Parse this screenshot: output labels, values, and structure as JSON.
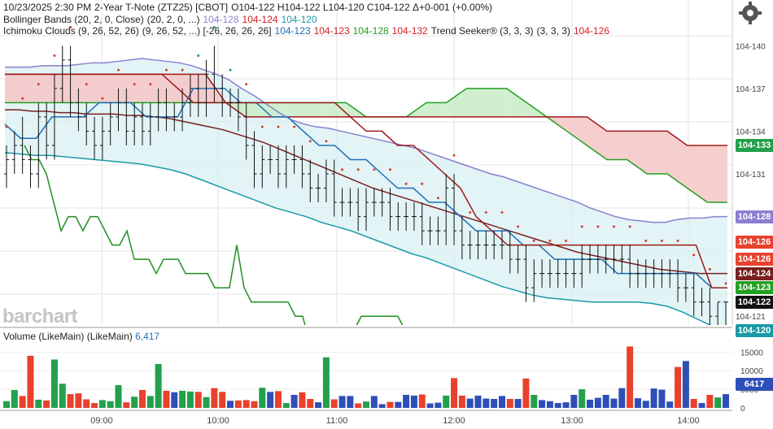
{
  "header": {
    "line1": [
      {
        "text": "10/23/2025  2:30 PM",
        "color": "dark"
      },
      {
        "text": "2-Year T-Note (ZTZ25) [CBOT]",
        "color": "dark"
      },
      {
        "text": "O104-122 H104-122 L104-120 C104-122 Δ+0-001 (+0.00%)",
        "color": "dark"
      }
    ],
    "line2": [
      {
        "text": "Bollinger Bands (20, 2, 0, Close)",
        "color": "dark"
      },
      {
        "text": "(20, 2, 0, ...)",
        "color": "dark"
      },
      {
        "text": "104-128",
        "color": "purple"
      },
      {
        "text": "104-124",
        "color": "red"
      },
      {
        "text": "104-120",
        "color": "teal"
      }
    ],
    "line3": [
      {
        "text": "Ichimoku Clouds (9, 26, 52, 26)",
        "color": "dark"
      },
      {
        "text": "(9, 26, 52, ...) [-26, 26, 26, 26]",
        "color": "dark"
      },
      {
        "text": "104-123",
        "color": "blue"
      },
      {
        "text": "104-123",
        "color": "red"
      },
      {
        "text": "104-128",
        "color": "green"
      },
      {
        "text": "104-132",
        "color": "red"
      },
      {
        "text": "Trend Seeker® (3, 3, 3)",
        "color": "dark"
      },
      {
        "text": "(3, 3, 3)",
        "color": "dark"
      },
      {
        "text": "104-126",
        "color": "red"
      }
    ]
  },
  "logo": "barchart",
  "settings_icon": "gear-icon",
  "volume_title": {
    "label": "Volume (LikeMain)",
    "sub": "(LikeMain)",
    "value": "6,417"
  },
  "colors": {
    "up": "#22a04a",
    "down": "#e8412c",
    "neutral": "#2e4fb8",
    "bb_upper": "#8a7fd0",
    "bb_mid": "#7a2020",
    "bb_lower": "#1a9aa6",
    "tenkan": "#1f6fb8",
    "kijun": "#a01818",
    "senkou_a": "#22a022",
    "senkou_b": "#a01818",
    "chikou": "#1f8f1f",
    "trend_dots_up": "#e03a2a",
    "trend_dots_down": "#22a04a"
  },
  "price_axis": {
    "ticks": [
      "104-140",
      "104-137",
      "104-134",
      "104-131",
      "104-121"
    ],
    "badges": [
      {
        "label": "104-133",
        "color": "#22a04a"
      },
      {
        "label": "104-128",
        "color": "#8a7fd0"
      },
      {
        "label": "104-126",
        "color": "#e8412c"
      },
      {
        "label": "104-126",
        "color": "#e8412c"
      },
      {
        "label": "104-124",
        "color": "#7a2020"
      },
      {
        "label": "104-123",
        "color": "#22a022"
      },
      {
        "label": "104-122",
        "color": "#111111"
      },
      {
        "label": "104-120",
        "color": "#1a9aa6"
      }
    ]
  },
  "volume_axis": {
    "ticks": [
      "15000",
      "10000",
      "5000",
      "0"
    ],
    "badge": "6417"
  },
  "time_axis": {
    "ticks": [
      "09:00",
      "10:00",
      "11:00",
      "12:00",
      "13:00",
      "14:00"
    ]
  },
  "chart_data": {
    "type": "ohlc",
    "price_unit": "32nds above 104",
    "ylim_price": [
      120.5,
      141.5
    ],
    "ylim_volume": [
      0,
      19000
    ],
    "bars": [
      {
        "o": 131,
        "h": 133,
        "l": 130,
        "c": 132,
        "v": 1800
      },
      {
        "o": 132,
        "h": 134,
        "l": 131,
        "c": 133,
        "v": 4800
      },
      {
        "o": 133,
        "h": 135,
        "l": 131,
        "c": 132,
        "v": 3200
      },
      {
        "o": 132,
        "h": 133,
        "l": 130,
        "c": 131,
        "v": 14000
      },
      {
        "o": 131,
        "h": 136,
        "l": 130,
        "c": 135,
        "v": 2200
      },
      {
        "o": 135,
        "h": 136,
        "l": 132,
        "c": 133,
        "v": 2000
      },
      {
        "o": 133,
        "h": 138,
        "l": 132,
        "c": 137,
        "v": 13000
      },
      {
        "o": 137,
        "h": 140,
        "l": 136,
        "c": 139,
        "v": 6500
      },
      {
        "o": 139,
        "h": 140,
        "l": 135,
        "c": 136,
        "v": 3700
      },
      {
        "o": 136,
        "h": 137,
        "l": 134,
        "c": 135,
        "v": 3900
      },
      {
        "o": 135,
        "h": 136,
        "l": 133,
        "c": 134,
        "v": 2300
      },
      {
        "o": 134,
        "h": 135,
        "l": 132,
        "c": 133,
        "v": 1300
      },
      {
        "o": 133,
        "h": 135,
        "l": 132,
        "c": 134,
        "v": 2100
      },
      {
        "o": 134,
        "h": 136,
        "l": 133,
        "c": 135,
        "v": 1800
      },
      {
        "o": 135,
        "h": 137,
        "l": 134,
        "c": 136,
        "v": 6100
      },
      {
        "o": 136,
        "h": 137,
        "l": 133,
        "c": 134,
        "v": 1500
      },
      {
        "o": 134,
        "h": 136,
        "l": 133,
        "c": 135,
        "v": 3000
      },
      {
        "o": 135,
        "h": 136,
        "l": 133,
        "c": 134,
        "v": 4800
      },
      {
        "o": 134,
        "h": 136,
        "l": 133,
        "c": 135,
        "v": 3200
      },
      {
        "o": 135,
        "h": 137,
        "l": 134,
        "c": 136,
        "v": 11800
      },
      {
        "o": 136,
        "h": 137,
        "l": 134,
        "c": 135,
        "v": 4600
      },
      {
        "o": 135,
        "h": 136,
        "l": 134,
        "c": 135,
        "v": 4200
      },
      {
        "o": 135,
        "h": 137,
        "l": 134,
        "c": 136,
        "v": 4600
      },
      {
        "o": 136,
        "h": 138,
        "l": 135,
        "c": 137,
        "v": 4400
      },
      {
        "o": 137,
        "h": 138,
        "l": 135,
        "c": 136,
        "v": 4300
      },
      {
        "o": 136,
        "h": 139,
        "l": 135,
        "c": 138,
        "v": 2900
      },
      {
        "o": 138,
        "h": 140,
        "l": 136,
        "c": 137,
        "v": 5300
      },
      {
        "o": 137,
        "h": 138,
        "l": 135,
        "c": 136,
        "v": 4300
      },
      {
        "o": 136,
        "h": 137,
        "l": 135,
        "c": 136,
        "v": 1900
      },
      {
        "o": 136,
        "h": 137,
        "l": 134,
        "c": 135,
        "v": 2000
      },
      {
        "o": 135,
        "h": 136,
        "l": 132,
        "c": 133,
        "v": 2100
      },
      {
        "o": 133,
        "h": 134,
        "l": 130,
        "c": 131,
        "v": 1800
      },
      {
        "o": 131,
        "h": 133,
        "l": 130,
        "c": 132,
        "v": 5400
      },
      {
        "o": 132,
        "h": 133,
        "l": 131,
        "c": 132,
        "v": 4300
      },
      {
        "o": 132,
        "h": 133,
        "l": 130,
        "c": 131,
        "v": 4500
      },
      {
        "o": 131,
        "h": 133,
        "l": 130,
        "c": 132,
        "v": 1300
      },
      {
        "o": 132,
        "h": 133,
        "l": 131,
        "c": 132,
        "v": 3500
      },
      {
        "o": 132,
        "h": 133,
        "l": 130,
        "c": 131,
        "v": 4200
      },
      {
        "o": 131,
        "h": 132,
        "l": 129,
        "c": 130,
        "v": 2400
      },
      {
        "o": 130,
        "h": 131,
        "l": 129,
        "c": 130,
        "v": 1500
      },
      {
        "o": 130,
        "h": 132,
        "l": 129,
        "c": 131,
        "v": 13600
      },
      {
        "o": 131,
        "h": 132,
        "l": 128,
        "c": 129,
        "v": 2300
      },
      {
        "o": 129,
        "h": 130,
        "l": 128,
        "c": 129,
        "v": 3200
      },
      {
        "o": 129,
        "h": 130,
        "l": 128,
        "c": 129,
        "v": 3200
      },
      {
        "o": 129,
        "h": 130,
        "l": 127,
        "c": 128,
        "v": 1200
      },
      {
        "o": 128,
        "h": 130,
        "l": 127,
        "c": 129,
        "v": 1700
      },
      {
        "o": 129,
        "h": 130,
        "l": 128,
        "c": 129,
        "v": 3200
      },
      {
        "o": 129,
        "h": 130,
        "l": 128,
        "c": 129,
        "v": 1000
      },
      {
        "o": 129,
        "h": 130,
        "l": 127,
        "c": 128,
        "v": 1600
      },
      {
        "o": 128,
        "h": 129,
        "l": 127,
        "c": 128,
        "v": 1600
      },
      {
        "o": 128,
        "h": 129,
        "l": 127,
        "c": 128,
        "v": 3500
      },
      {
        "o": 128,
        "h": 129,
        "l": 127,
        "c": 128,
        "v": 3300
      },
      {
        "o": 128,
        "h": 129,
        "l": 126,
        "c": 127,
        "v": 3600
      },
      {
        "o": 127,
        "h": 128,
        "l": 126,
        "c": 127,
        "v": 1200
      },
      {
        "o": 127,
        "h": 128,
        "l": 126,
        "c": 127,
        "v": 1400
      },
      {
        "o": 127,
        "h": 131,
        "l": 126,
        "c": 130,
        "v": 3300
      },
      {
        "o": 130,
        "h": 131,
        "l": 126,
        "c": 127,
        "v": 8000
      },
      {
        "o": 127,
        "h": 128,
        "l": 125,
        "c": 126,
        "v": 3300
      },
      {
        "o": 126,
        "h": 127,
        "l": 125,
        "c": 126,
        "v": 2500
      },
      {
        "o": 126,
        "h": 127,
        "l": 125,
        "c": 126,
        "v": 3300
      },
      {
        "o": 126,
        "h": 127,
        "l": 125,
        "c": 126,
        "v": 2500
      },
      {
        "o": 126,
        "h": 127,
        "l": 125,
        "c": 126,
        "v": 2400
      },
      {
        "o": 126,
        "h": 127,
        "l": 125,
        "c": 126,
        "v": 3200
      },
      {
        "o": 126,
        "h": 127,
        "l": 124,
        "c": 125,
        "v": 2400
      },
      {
        "o": 125,
        "h": 126,
        "l": 124,
        "c": 125,
        "v": 2400
      },
      {
        "o": 125,
        "h": 126,
        "l": 122,
        "c": 123,
        "v": 7900
      },
      {
        "o": 123,
        "h": 125,
        "l": 122,
        "c": 124,
        "v": 3500
      },
      {
        "o": 124,
        "h": 125,
        "l": 123,
        "c": 124,
        "v": 2100
      },
      {
        "o": 124,
        "h": 125,
        "l": 123,
        "c": 124,
        "v": 1800
      },
      {
        "o": 124,
        "h": 125,
        "l": 123,
        "c": 124,
        "v": 1300
      },
      {
        "o": 124,
        "h": 125,
        "l": 123,
        "c": 124,
        "v": 1500
      },
      {
        "o": 124,
        "h": 125,
        "l": 123,
        "c": 124,
        "v": 3500
      },
      {
        "o": 124,
        "h": 126,
        "l": 123,
        "c": 125,
        "v": 5000
      },
      {
        "o": 125,
        "h": 126,
        "l": 124,
        "c": 125,
        "v": 2200
      },
      {
        "o": 125,
        "h": 126,
        "l": 124,
        "c": 125,
        "v": 2700
      },
      {
        "o": 125,
        "h": 126,
        "l": 124,
        "c": 125,
        "v": 3500
      },
      {
        "o": 125,
        "h": 126,
        "l": 124,
        "c": 125,
        "v": 2500
      },
      {
        "o": 125,
        "h": 126,
        "l": 124,
        "c": 125,
        "v": 5300
      },
      {
        "o": 125,
        "h": 126,
        "l": 123,
        "c": 124,
        "v": 16500
      },
      {
        "o": 124,
        "h": 125,
        "l": 123,
        "c": 124,
        "v": 2600
      },
      {
        "o": 124,
        "h": 125,
        "l": 123,
        "c": 124,
        "v": 1900
      },
      {
        "o": 124,
        "h": 125,
        "l": 123,
        "c": 124,
        "v": 5200
      },
      {
        "o": 124,
        "h": 125,
        "l": 123,
        "c": 124,
        "v": 4900
      },
      {
        "o": 124,
        "h": 125,
        "l": 123,
        "c": 124,
        "v": 1700
      },
      {
        "o": 124,
        "h": 125,
        "l": 122,
        "c": 123,
        "v": 11000
      },
      {
        "o": 123,
        "h": 124,
        "l": 122,
        "c": 123,
        "v": 12600
      },
      {
        "o": 123,
        "h": 124,
        "l": 121,
        "c": 122,
        "v": 2400
      },
      {
        "o": 122,
        "h": 123,
        "l": 121,
        "c": 122,
        "v": 1300
      },
      {
        "o": 122,
        "h": 123,
        "l": 120,
        "c": 121,
        "v": 3500
      },
      {
        "o": 121,
        "h": 122,
        "l": 120,
        "c": 122,
        "v": 2800
      },
      {
        "o": 122,
        "h": 122,
        "l": 120,
        "c": 122,
        "v": 3700
      }
    ],
    "bb_upper": [
      138.5,
      138.5,
      138.5,
      138.6,
      138.6,
      138.6,
      138.7,
      138.8,
      138.8,
      138.9,
      139,
      139.1,
      139,
      138.9,
      138.8,
      138.6,
      138.3,
      138,
      137.6,
      137,
      136.5,
      135.9,
      135.3,
      134.8,
      134.5,
      134.3,
      134.2,
      134,
      133.8,
      133.6,
      133.4,
      133.2,
      133,
      132.8,
      132.5,
      132.2,
      131.9,
      131.6,
      131.3,
      131,
      130.8,
      130.5,
      130.2,
      129.9,
      129.6,
      129.3,
      129,
      128.6,
      128.3,
      128,
      127.8,
      127.7,
      127.6,
      127.6,
      127.8,
      127.9,
      127.9,
      128,
      128
    ],
    "bb_mid": [
      135.5,
      135.5,
      135.4,
      135.4,
      135.3,
      135.3,
      135.2,
      135.2,
      135.2,
      135.1,
      135.1,
      135,
      134.9,
      134.7,
      134.5,
      134.3,
      134.1,
      133.8,
      133.5,
      133.2,
      132.8,
      132.4,
      132,
      131.6,
      131.2,
      130.8,
      130.4,
      130,
      129.7,
      129.4,
      129.1,
      128.8,
      128.5,
      128.2,
      127.9,
      127.6,
      127.3,
      127,
      126.7,
      126.4,
      126.1,
      125.8,
      125.5,
      125.3,
      125.1,
      124.9,
      124.7,
      124.5,
      124.3,
      124.2,
      124.1,
      124,
      124,
      124
    ],
    "bb_lower": [
      132.5,
      132.4,
      132.3,
      132.3,
      132.2,
      132.1,
      132,
      131.9,
      131.8,
      131.7,
      131.5,
      131.3,
      131,
      130.6,
      130.2,
      129.8,
      129.4,
      129,
      128.6,
      128.3,
      128,
      127.6,
      127.3,
      127,
      126.6,
      126.2,
      125.8,
      125.4,
      125.1,
      124.7,
      124.3,
      123.9,
      123.5,
      123.1,
      122.8,
      122.5,
      122.3,
      122.2,
      122.1,
      122,
      122,
      122,
      122,
      121.9,
      121.7,
      121.3,
      120.8,
      120.3,
      120
    ],
    "tenkan": [
      134.5,
      133.5,
      133.5,
      135,
      135,
      135,
      136,
      136,
      136,
      135,
      135,
      135,
      137,
      137,
      137,
      136,
      136,
      135,
      135,
      134,
      133,
      133,
      132,
      132,
      131,
      130,
      130,
      129,
      129,
      128,
      127,
      127,
      127,
      126,
      126,
      125,
      125,
      125,
      125,
      124,
      124,
      124,
      124,
      124,
      124,
      123,
      123
    ],
    "kijun": [
      138,
      138,
      138,
      138,
      138,
      138,
      138,
      138,
      138,
      138,
      138,
      137,
      136,
      136,
      136,
      136,
      136,
      136,
      136,
      136,
      136,
      136,
      135,
      134,
      134,
      133,
      133,
      132,
      131,
      130,
      128,
      127,
      126,
      126,
      126,
      126,
      126,
      126,
      126,
      126,
      126,
      126,
      126,
      126,
      126,
      123,
      123
    ],
    "senkou_a": [
      136,
      136,
      136,
      136,
      136,
      136,
      136,
      136,
      136,
      136,
      136,
      136,
      136,
      136,
      136,
      136,
      136,
      136,
      135,
      135,
      135,
      136,
      136,
      137,
      137,
      137,
      136,
      135,
      134,
      133,
      132,
      132,
      131,
      131,
      130,
      129,
      129
    ],
    "senkou_b": [
      138,
      138,
      138,
      138,
      138,
      138,
      138,
      138,
      138,
      138,
      138,
      136,
      135,
      135,
      135,
      135,
      135,
      135,
      135,
      135,
      135,
      135,
      135,
      135,
      135,
      135,
      135,
      135,
      135,
      135,
      134,
      134,
      134,
      134,
      133,
      133,
      133
    ]
  }
}
